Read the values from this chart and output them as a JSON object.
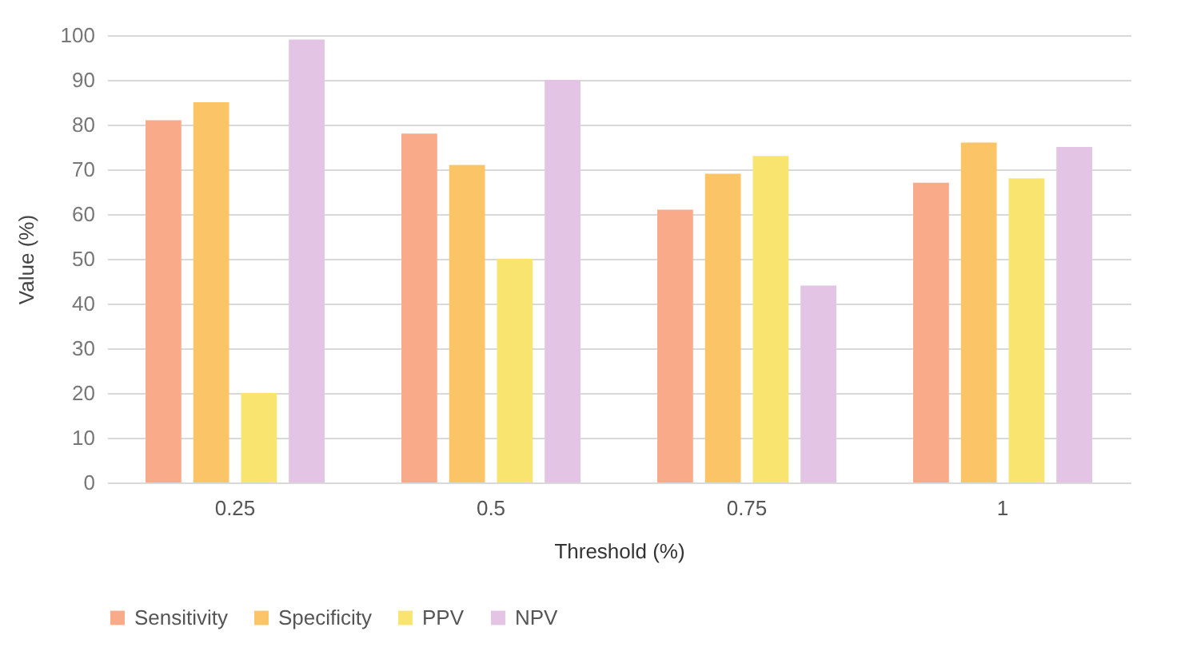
{
  "chart_data": {
    "type": "bar",
    "xlabel": "Threshold (%)",
    "ylabel": "Value (%)",
    "categories": [
      "0.25",
      "0.5",
      "0.75",
      "1"
    ],
    "series": [
      {
        "name": "Sensitivity",
        "color": "#f9aa88",
        "values": [
          81,
          78,
          61,
          67
        ]
      },
      {
        "name": "Specificity",
        "color": "#fbc466",
        "values": [
          85,
          71,
          69,
          76
        ]
      },
      {
        "name": "PPV",
        "color": "#f9e470",
        "values": [
          20,
          50,
          73,
          68
        ]
      },
      {
        "name": "NPV",
        "color": "#e3c4e4",
        "values": [
          99,
          90,
          44,
          75
        ]
      }
    ],
    "ylim": [
      0,
      100
    ],
    "yticks": [
      0,
      10,
      20,
      30,
      40,
      50,
      60,
      70,
      80,
      90,
      100
    ],
    "grid": "y",
    "legend": "bottom"
  }
}
